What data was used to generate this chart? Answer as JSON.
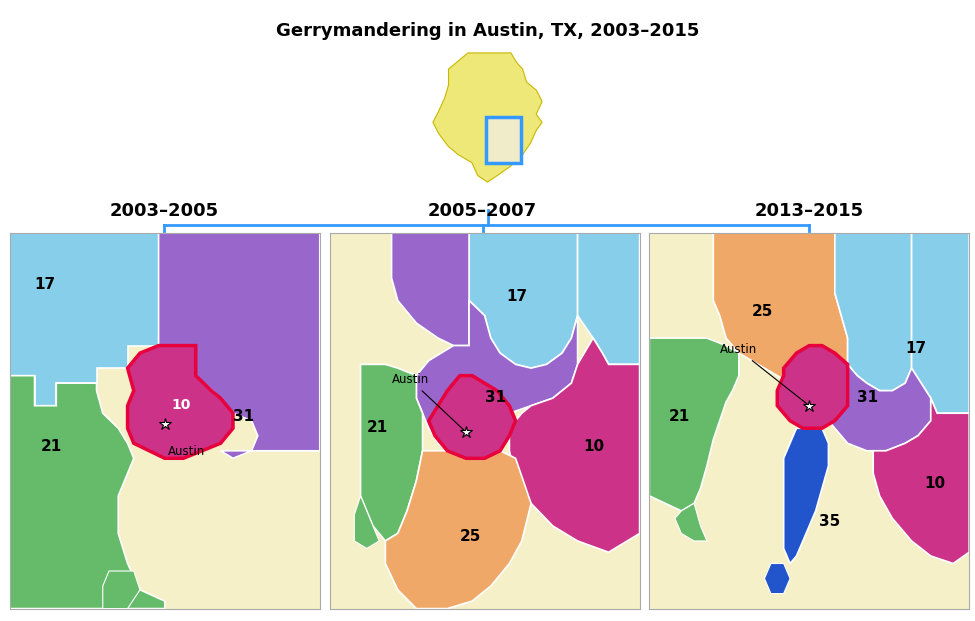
{
  "title": "Gerrymandering in Austin, TX, 2003–2015",
  "title_fontsize": 13,
  "title_fontweight": "bold",
  "background_color": "#ffffff",
  "map_bg_color": "#f5f0c8",
  "periods": [
    "2003–2005",
    "2005–2007",
    "2013–2015"
  ],
  "period_fontsize": 13,
  "period_fontweight": "bold",
  "connector_color": "#3399ff",
  "connector_linewidth": 2.0,
  "colors": {
    "blue17": "#87ceeb",
    "green21": "#66bb6a",
    "purple31": "#9966cc",
    "magenta10": "#cc3388",
    "orange25": "#f0a868",
    "navyblue35": "#2255cc",
    "map_bg": "#f5f0c8",
    "district_edge": "#ffffff",
    "red_border": "#e8003d"
  }
}
